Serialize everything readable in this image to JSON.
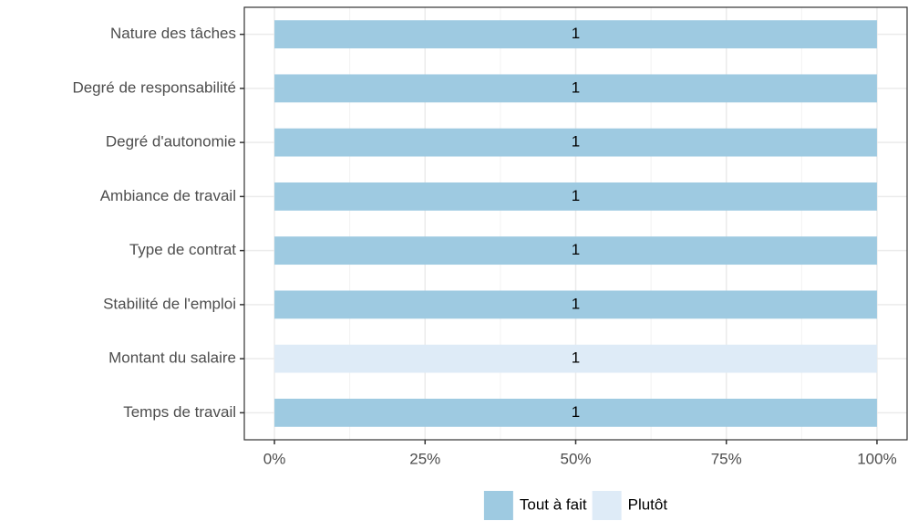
{
  "chart_data": {
    "type": "bar",
    "orientation": "horizontal",
    "stacked": true,
    "categories": [
      "Nature des tâches",
      "Degré de responsabilité",
      "Degré d'autonomie",
      "Ambiance de travail",
      "Type de contrat",
      "Stabilité de l'emploi",
      "Montant du salaire",
      "Temps de travail"
    ],
    "series": [
      {
        "name": "Tout à fait",
        "color": "#9ecae1",
        "values": [
          100,
          100,
          100,
          100,
          100,
          100,
          null,
          100
        ],
        "counts": [
          1,
          1,
          1,
          1,
          1,
          1,
          null,
          1
        ]
      },
      {
        "name": "Plutôt",
        "color": "#deebf7",
        "values": [
          null,
          null,
          null,
          null,
          null,
          null,
          100,
          null
        ],
        "counts": [
          null,
          null,
          null,
          null,
          null,
          null,
          1,
          null
        ]
      }
    ],
    "xlim": [
      -5,
      105
    ],
    "xticks": [
      {
        "value": 0,
        "label": "0%"
      },
      {
        "value": 25,
        "label": "25%"
      },
      {
        "value": 50,
        "label": "50%"
      },
      {
        "value": 75,
        "label": "75%"
      },
      {
        "value": 100,
        "label": "100%"
      }
    ],
    "minor_xticks": [
      12.5,
      37.5,
      62.5,
      87.5
    ],
    "grid": true,
    "legend": "bottom"
  }
}
